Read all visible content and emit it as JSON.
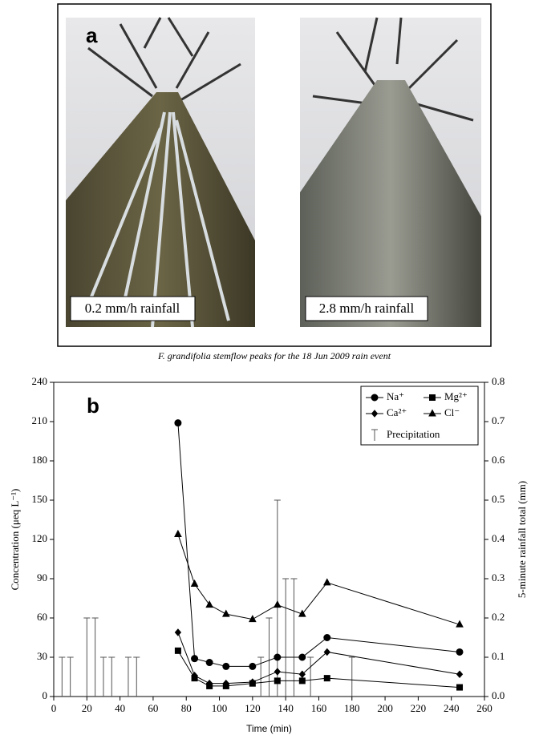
{
  "panel_a": {
    "label": "a",
    "left_photo_caption": "0.2 mm/h rainfall",
    "right_photo_caption": "2.8 mm/h rainfall",
    "caption": "F. grandifolia stemflow peaks for the 18 Jun 2009 rain event"
  },
  "chart_data": {
    "type": "line",
    "panel_label": "b",
    "x_label": "Time (min)",
    "y_label": "Concentration (μeq L⁻¹)",
    "y2_label": "5-minute rainfall total (mm)",
    "xlim": [
      0,
      260
    ],
    "xticks": [
      0,
      20,
      40,
      60,
      80,
      100,
      120,
      140,
      160,
      180,
      200,
      220,
      240,
      260
    ],
    "ylim": [
      0,
      240
    ],
    "yticks": [
      0,
      30,
      60,
      90,
      120,
      150,
      180,
      210,
      240
    ],
    "y2lim": [
      0,
      0.8
    ],
    "y2ticks": [
      {
        "value": 0,
        "label": "0.0"
      },
      0.1,
      0.2,
      0.3,
      0.4,
      0.5,
      0.6,
      0.7,
      0.8
    ],
    "x": [
      75,
      85,
      94,
      104,
      120,
      135,
      150,
      165,
      245
    ],
    "series": [
      {
        "name": "Na⁺",
        "color": "#000000",
        "marker": "circle",
        "values": [
          209,
          29,
          26,
          23,
          23,
          30,
          30,
          45,
          34
        ]
      },
      {
        "name": "Mg²⁺",
        "color": "#000000",
        "marker": "square",
        "values": [
          35,
          14,
          8,
          8,
          10,
          12,
          12,
          14,
          7
        ]
      },
      {
        "name": "Ca²⁺",
        "color": "#000000",
        "marker": "diamond",
        "values": [
          49,
          16,
          10,
          10,
          11,
          19,
          17,
          34,
          17
        ]
      },
      {
        "name": "Cl⁻",
        "color": "#000000",
        "marker": "triangle",
        "values": [
          124,
          86,
          70,
          63,
          59,
          70,
          63,
          87,
          55
        ]
      }
    ],
    "precipitation": {
      "name": "Precipitation",
      "color": "#555555",
      "axis": "y2",
      "x": [
        5,
        10,
        20,
        25,
        30,
        35,
        45,
        50,
        125,
        130,
        135,
        140,
        145,
        155,
        180
      ],
      "values": [
        0.1,
        0.1,
        0.2,
        0.2,
        0.1,
        0.1,
        0.1,
        0.1,
        0.1,
        0.2,
        0.5,
        0.3,
        0.3,
        0.1,
        0.1
      ]
    }
  }
}
